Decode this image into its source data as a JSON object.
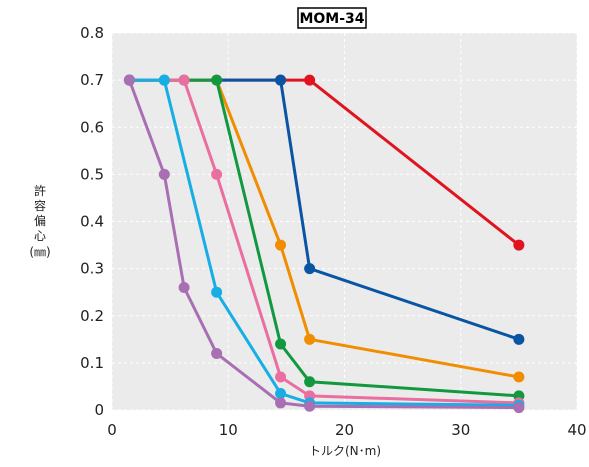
{
  "chart_data": {
    "type": "line",
    "title": "MOM-34",
    "xlabel": "トルク(N･m)",
    "ylabel_lines": [
      "許",
      "容",
      "偏",
      "心",
      "(㎜)"
    ],
    "xlim": [
      0,
      40
    ],
    "ylim": [
      0,
      0.8
    ],
    "xticks": [
      0,
      10,
      20,
      30,
      40
    ],
    "yticks": [
      0,
      0.1,
      0.2,
      0.3,
      0.4,
      0.5,
      0.6,
      0.7,
      0.8
    ],
    "xtick_labels": [
      "0",
      "10",
      "20",
      "30",
      "40"
    ],
    "ytick_labels": [
      "0",
      "0.1",
      "0.2",
      "0.3",
      "0.4",
      "0.5",
      "0.6",
      "0.7",
      "0.8"
    ],
    "grid": true,
    "series": [
      {
        "color": "#e0141e",
        "points": [
          [
            1.5,
            0.7
          ],
          [
            14.5,
            0.7
          ],
          [
            17,
            0.7
          ],
          [
            35,
            0.35
          ]
        ]
      },
      {
        "color": "#0a55a3",
        "points": [
          [
            1.5,
            0.7
          ],
          [
            14.5,
            0.7
          ],
          [
            17,
            0.3
          ],
          [
            35,
            0.15
          ]
        ]
      },
      {
        "color": "#f18d00",
        "points": [
          [
            1.5,
            0.7
          ],
          [
            9,
            0.7
          ],
          [
            14.5,
            0.35
          ],
          [
            17,
            0.15
          ],
          [
            35,
            0.07
          ]
        ]
      },
      {
        "color": "#12983e",
        "points": [
          [
            1.5,
            0.7
          ],
          [
            4.5,
            0.7
          ],
          [
            6.2,
            0.7
          ],
          [
            9,
            0.7
          ],
          [
            14.5,
            0.14
          ],
          [
            17,
            0.06
          ],
          [
            35,
            0.03
          ]
        ]
      },
      {
        "color": "#ea6fa0",
        "points": [
          [
            1.5,
            0.7
          ],
          [
            6.2,
            0.7
          ],
          [
            9,
            0.5
          ],
          [
            14.5,
            0.07
          ],
          [
            17,
            0.03
          ],
          [
            35,
            0.015
          ]
        ]
      },
      {
        "color": "#16aee4",
        "points": [
          [
            1.5,
            0.7
          ],
          [
            4.5,
            0.7
          ],
          [
            9,
            0.25
          ],
          [
            14.5,
            0.035
          ],
          [
            17,
            0.015
          ],
          [
            35,
            0.01
          ]
        ]
      },
      {
        "color": "#a86fb3",
        "points": [
          [
            1.5,
            0.7
          ],
          [
            4.5,
            0.5
          ],
          [
            6.2,
            0.26
          ],
          [
            9,
            0.12
          ],
          [
            14.5,
            0.015
          ],
          [
            17,
            0.008
          ],
          [
            35,
            0.005
          ]
        ]
      }
    ]
  }
}
